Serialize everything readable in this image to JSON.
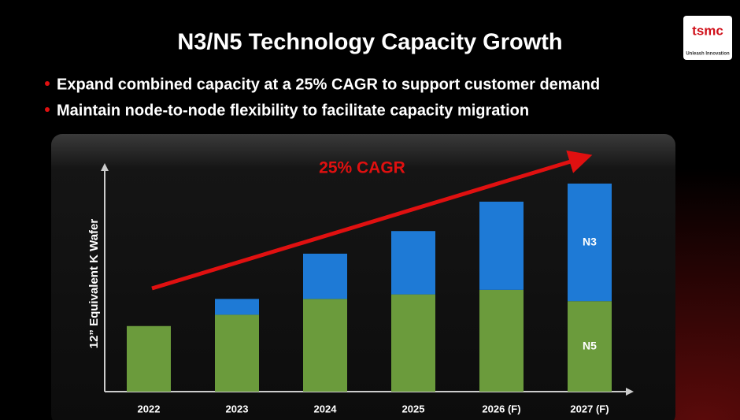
{
  "chart_data": {
    "type": "stacked_bar",
    "title": "N3/N5 Technology Capacity Growth",
    "bullets": [
      "Expand combined capacity at a 25% CAGR to support customer demand",
      "Maintain node-to-node flexibility to facilitate capacity migration"
    ],
    "annotation": "25% CAGR",
    "ylabel": "12” Equivalent K Wafer",
    "logo": "tsmc",
    "tagline": "Unleash Innovation",
    "categories": [
      "2022",
      "2023",
      "2024",
      "2025",
      "2026 (F)",
      "2027 (F)"
    ],
    "series": [
      {
        "name": "N5",
        "color": "#6b9b3c",
        "values": [
          29,
          34,
          41,
          43,
          45,
          40
        ]
      },
      {
        "name": "N3",
        "color": "#1e7ad6",
        "values": [
          0,
          7,
          20,
          28,
          39,
          52
        ]
      }
    ],
    "ylim": [
      0,
      100
    ]
  }
}
